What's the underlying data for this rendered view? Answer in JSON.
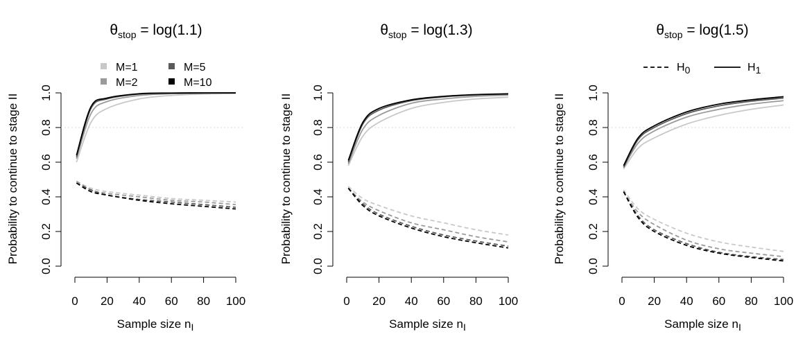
{
  "panels_layout": "1x3",
  "colors": {
    "M=1": "#c8c8c8",
    "M=2": "#9a9a9a",
    "M=5": "#5a5a5a",
    "M=10": "#000000",
    "reference_line": "#d8d8d8"
  },
  "chart_data": [
    {
      "type": "line",
      "title_prefix": "θ",
      "title_subscript": "stop",
      "title_suffix": " = log(1.1)",
      "xlabel": "Sample size n",
      "xlabel_subscript": "I",
      "ylabel": "Probability to continue to stage II",
      "xlim": [
        0,
        100
      ],
      "ylim": [
        0,
        1
      ],
      "xticks": [
        "0",
        "20",
        "40",
        "60",
        "80",
        "100"
      ],
      "yticks": [
        "0.0",
        "0.2",
        "0.4",
        "0.6",
        "0.8",
        "1.0"
      ],
      "reference_line_y": 0.8,
      "legend": {
        "placement": "top-left",
        "entries": [
          {
            "label": "M=1",
            "key": "M=1"
          },
          {
            "label": "M=2",
            "key": "M=2"
          },
          {
            "label": "M=5",
            "key": "M=5"
          },
          {
            "label": "M=10",
            "key": "M=10"
          }
        ]
      },
      "x": [
        1,
        10,
        20,
        40,
        60,
        80,
        100
      ],
      "series": [
        {
          "name": "M=1",
          "hypothesis": "H1",
          "style": "solid",
          "values": [
            0.6,
            0.83,
            0.91,
            0.965,
            0.985,
            0.993,
            0.997
          ]
        },
        {
          "name": "M=2",
          "hypothesis": "H1",
          "style": "solid",
          "values": [
            0.62,
            0.88,
            0.95,
            0.985,
            0.995,
            0.998,
            0.999
          ]
        },
        {
          "name": "M=5",
          "hypothesis": "H1",
          "style": "solid",
          "values": [
            0.63,
            0.91,
            0.965,
            0.993,
            0.998,
            0.999,
            1.0
          ]
        },
        {
          "name": "M=10",
          "hypothesis": "H1",
          "style": "solid",
          "values": [
            0.64,
            0.92,
            0.97,
            0.995,
            0.999,
            1.0,
            1.0
          ]
        },
        {
          "name": "M=1",
          "hypothesis": "H0",
          "style": "dashed",
          "values": [
            0.49,
            0.45,
            0.43,
            0.41,
            0.39,
            0.38,
            0.37
          ]
        },
        {
          "name": "M=2",
          "hypothesis": "H0",
          "style": "dashed",
          "values": [
            0.49,
            0.44,
            0.42,
            0.4,
            0.38,
            0.37,
            0.355
          ]
        },
        {
          "name": "M=5",
          "hypothesis": "H0",
          "style": "dashed",
          "values": [
            0.48,
            0.44,
            0.41,
            0.385,
            0.37,
            0.355,
            0.34
          ]
        },
        {
          "name": "M=10",
          "hypothesis": "H0",
          "style": "dashed",
          "values": [
            0.48,
            0.43,
            0.41,
            0.38,
            0.36,
            0.345,
            0.33
          ]
        }
      ]
    },
    {
      "type": "line",
      "title_prefix": "θ",
      "title_subscript": "stop",
      "title_suffix": " = log(1.3)",
      "xlabel": "Sample size n",
      "xlabel_subscript": "I",
      "ylabel": "Probability to continue to stage II",
      "xlim": [
        0,
        100
      ],
      "ylim": [
        0,
        1
      ],
      "xticks": [
        "0",
        "20",
        "40",
        "60",
        "80",
        "100"
      ],
      "yticks": [
        "0.0",
        "0.2",
        "0.4",
        "0.6",
        "0.8",
        "1.0"
      ],
      "reference_line_y": 0.8,
      "x": [
        1,
        10,
        20,
        40,
        60,
        80,
        100
      ],
      "series": [
        {
          "name": "M=1",
          "hypothesis": "H1",
          "style": "solid",
          "values": [
            0.58,
            0.75,
            0.83,
            0.91,
            0.945,
            0.965,
            0.975
          ]
        },
        {
          "name": "M=2",
          "hypothesis": "H1",
          "style": "solid",
          "values": [
            0.59,
            0.79,
            0.87,
            0.94,
            0.965,
            0.98,
            0.987
          ]
        },
        {
          "name": "M=5",
          "hypothesis": "H1",
          "style": "solid",
          "values": [
            0.6,
            0.82,
            0.9,
            0.955,
            0.977,
            0.988,
            0.993
          ]
        },
        {
          "name": "M=10",
          "hypothesis": "H1",
          "style": "solid",
          "values": [
            0.61,
            0.83,
            0.91,
            0.96,
            0.98,
            0.99,
            0.995
          ]
        },
        {
          "name": "M=1",
          "hypothesis": "H0",
          "style": "dashed",
          "values": [
            0.46,
            0.39,
            0.35,
            0.29,
            0.25,
            0.21,
            0.18
          ]
        },
        {
          "name": "M=2",
          "hypothesis": "H0",
          "style": "dashed",
          "values": [
            0.45,
            0.37,
            0.32,
            0.25,
            0.21,
            0.17,
            0.14
          ]
        },
        {
          "name": "M=5",
          "hypothesis": "H0",
          "style": "dashed",
          "values": [
            0.45,
            0.36,
            0.3,
            0.23,
            0.18,
            0.145,
            0.115
          ]
        },
        {
          "name": "M=10",
          "hypothesis": "H0",
          "style": "dashed",
          "values": [
            0.45,
            0.35,
            0.29,
            0.22,
            0.17,
            0.135,
            0.105
          ]
        }
      ]
    },
    {
      "type": "line",
      "title_prefix": "θ",
      "title_subscript": "stop",
      "title_suffix": " = log(1.5)",
      "xlabel": "Sample size n",
      "xlabel_subscript": "I",
      "ylabel": "Probability to continue to stage II",
      "xlim": [
        0,
        100
      ],
      "ylim": [
        0,
        1
      ],
      "xticks": [
        "0",
        "20",
        "40",
        "60",
        "80",
        "100"
      ],
      "yticks": [
        "0.0",
        "0.2",
        "0.4",
        "0.6",
        "0.8",
        "1.0"
      ],
      "reference_line_y": 0.8,
      "legend": {
        "placement": "top-right",
        "entries": [
          {
            "label": "H",
            "subscript": "0",
            "style": "dashed"
          },
          {
            "label": "H",
            "subscript": "1",
            "style": "solid"
          }
        ]
      },
      "x": [
        1,
        10,
        20,
        40,
        60,
        80,
        100
      ],
      "series": [
        {
          "name": "M=1",
          "hypothesis": "H1",
          "style": "solid",
          "values": [
            0.56,
            0.68,
            0.74,
            0.82,
            0.87,
            0.905,
            0.93
          ]
        },
        {
          "name": "M=2",
          "hypothesis": "H1",
          "style": "solid",
          "values": [
            0.57,
            0.71,
            0.78,
            0.86,
            0.905,
            0.935,
            0.955
          ]
        },
        {
          "name": "M=5",
          "hypothesis": "H1",
          "style": "solid",
          "values": [
            0.57,
            0.73,
            0.8,
            0.88,
            0.925,
            0.952,
            0.97
          ]
        },
        {
          "name": "M=10",
          "hypothesis": "H1",
          "style": "solid",
          "values": [
            0.58,
            0.74,
            0.81,
            0.89,
            0.935,
            0.96,
            0.978
          ]
        },
        {
          "name": "M=1",
          "hypothesis": "H0",
          "style": "dashed",
          "values": [
            0.44,
            0.33,
            0.27,
            0.19,
            0.14,
            0.11,
            0.085
          ]
        },
        {
          "name": "M=2",
          "hypothesis": "H0",
          "style": "dashed",
          "values": [
            0.43,
            0.31,
            0.24,
            0.15,
            0.1,
            0.075,
            0.055
          ]
        },
        {
          "name": "M=5",
          "hypothesis": "H0",
          "style": "dashed",
          "values": [
            0.43,
            0.29,
            0.21,
            0.13,
            0.08,
            0.055,
            0.038
          ]
        },
        {
          "name": "M=10",
          "hypothesis": "H0",
          "style": "dashed",
          "values": [
            0.43,
            0.28,
            0.2,
            0.12,
            0.075,
            0.05,
            0.03
          ]
        }
      ]
    }
  ]
}
